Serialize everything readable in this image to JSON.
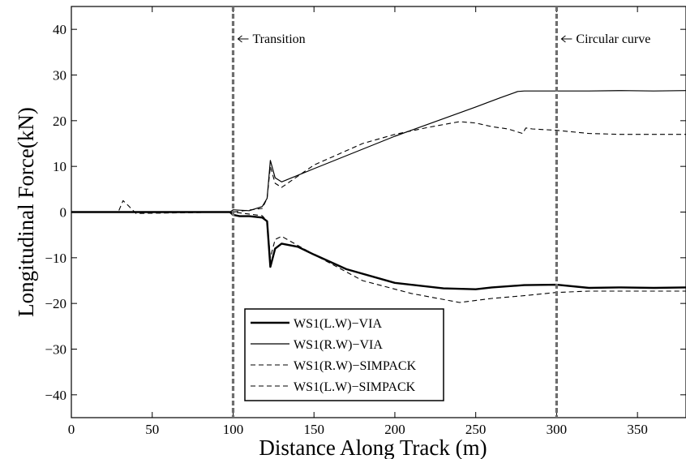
{
  "chart_data": {
    "type": "line",
    "xlabel": "Distance Along Track (m)",
    "ylabel": "Longitudinal Force(kN)",
    "xlim": [
      0,
      380
    ],
    "ylim": [
      -45,
      45
    ],
    "xticks": [
      "0",
      "50",
      "100",
      "150",
      "200",
      "250",
      "300",
      "350"
    ],
    "yticks": [
      "40",
      "30",
      "20",
      "10",
      "0",
      "−10",
      "−20",
      "−30",
      "−40"
    ],
    "grid": false,
    "legend_position": "bottom-left",
    "annotations": [
      {
        "text": "Transition",
        "x": 100
      },
      {
        "text": "Circular curve",
        "x": 300
      }
    ],
    "series": [
      {
        "name": "WS1(L.W)−VIA",
        "style": "solid",
        "width": 2.4,
        "x": [
          0,
          98,
          100,
          104,
          110,
          118,
          121,
          123,
          126,
          130,
          140,
          150,
          170,
          200,
          230,
          250,
          260,
          280,
          300,
          320,
          340,
          360,
          380
        ],
        "y": [
          0,
          0,
          -0.6,
          -0.9,
          -0.9,
          -1.2,
          -2,
          -12,
          -8,
          -6.9,
          -7.6,
          -9.3,
          -12.5,
          -15.5,
          -16.7,
          -16.9,
          -16.5,
          -16,
          -15.9,
          -16.6,
          -16.5,
          -16.6,
          -16.5
        ]
      },
      {
        "name": "WS1(R.W)−VIA",
        "style": "solid",
        "width": 1.2,
        "x": [
          0,
          98,
          100,
          104,
          110,
          118,
          121,
          123,
          126,
          130,
          150,
          200,
          250,
          265,
          276,
          280,
          300,
          320,
          340,
          360,
          380
        ],
        "y": [
          0,
          0,
          0.5,
          0.4,
          0.3,
          1.2,
          3,
          11.3,
          7.5,
          6.6,
          9.5,
          16.6,
          23,
          25,
          26.4,
          26.5,
          26.5,
          26.5,
          26.6,
          26.5,
          26.6
        ]
      },
      {
        "name": "WS1(R.W)−SIMPACK",
        "style": "dashed",
        "width": 1.1,
        "x": [
          0,
          100,
          118,
          121,
          123,
          126,
          130,
          150,
          180,
          200,
          220,
          240,
          250,
          260,
          270,
          279,
          281,
          285,
          300,
          320,
          340,
          360,
          380
        ],
        "y": [
          0,
          0,
          0.8,
          3,
          10,
          6.3,
          5.4,
          10.3,
          15,
          17,
          18.5,
          19.8,
          19.5,
          18.7,
          18.2,
          17.2,
          18.4,
          18.2,
          17.9,
          17.2,
          17,
          17,
          17
        ]
      },
      {
        "name": "WS1(L.W)−SIMPACK",
        "style": "dashed",
        "width": 1.1,
        "x": [
          0,
          29,
          32,
          35,
          38,
          40,
          100,
          118,
          121,
          123,
          126,
          130,
          150,
          180,
          210,
          240,
          260,
          280,
          300,
          320,
          340,
          360,
          380
        ],
        "y": [
          0,
          0,
          2.5,
          1.5,
          0.4,
          -0.3,
          0,
          -0.8,
          -2,
          -10,
          -6,
          -5.3,
          -9.3,
          -15,
          -17.8,
          -19.8,
          -18.9,
          -18.3,
          -17.6,
          -17.3,
          -17.3,
          -17.3,
          -17.3
        ]
      }
    ]
  }
}
